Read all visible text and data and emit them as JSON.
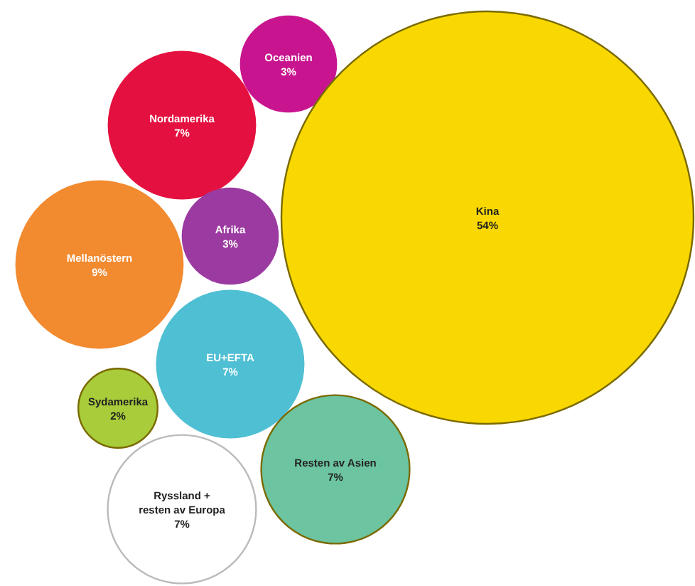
{
  "chart_data": {
    "type": "other",
    "categories": [
      "Oceanien",
      "Nordamerika",
      "Mellanöstern",
      "Afrika",
      "EU+EFTA",
      "Sydamerika",
      "Kina",
      "Resten av Asien",
      "Ryssland +\nresten av Europa"
    ],
    "values": [
      3,
      7,
      9,
      3,
      7,
      2,
      54,
      7,
      7
    ],
    "value_labels": [
      "3%",
      "7%",
      "9%",
      "3%",
      "7%",
      "2%",
      "54%",
      "7%",
      "7%"
    ],
    "colors": [
      "#c8158f",
      "#e4103f",
      "#f28a30",
      "#9b3aa0",
      "#4fbfd4",
      "#a8cc3a",
      "#f8d800",
      "#6cc4a0",
      "#ffffff"
    ]
  }
}
